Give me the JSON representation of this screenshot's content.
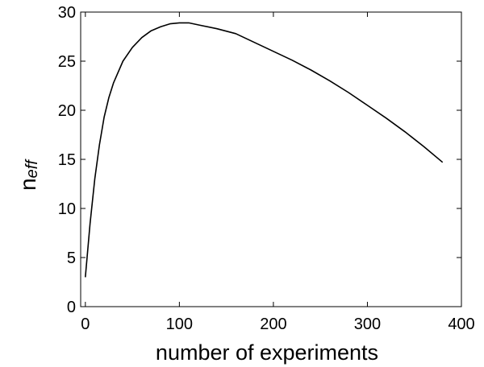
{
  "chart_data": {
    "type": "line",
    "title": "",
    "xlabel": "number of experiments",
    "ylabel": {
      "main": "n",
      "subscript": "eff"
    },
    "xlim": [
      -5,
      400
    ],
    "ylim": [
      0,
      30
    ],
    "xticks": [
      0,
      100,
      200,
      300,
      400
    ],
    "yticks": [
      0,
      5,
      10,
      15,
      20,
      25,
      30
    ],
    "xtick_labels": [
      "0",
      "100",
      "200",
      "300",
      "400"
    ],
    "ytick_labels": [
      "0",
      "5",
      "10",
      "15",
      "20",
      "25",
      "30"
    ],
    "grid": false,
    "legend": "none",
    "series": [
      {
        "color": "#000000",
        "x": [
          0,
          5,
          10,
          15,
          20,
          25,
          30,
          40,
          50,
          60,
          70,
          80,
          90,
          100,
          110,
          120,
          140,
          160,
          180,
          200,
          220,
          240,
          260,
          280,
          300,
          320,
          340,
          360,
          380
        ],
        "y": [
          3.0,
          8.5,
          13.0,
          16.5,
          19.3,
          21.3,
          22.8,
          25.0,
          26.4,
          27.4,
          28.1,
          28.5,
          28.8,
          28.9,
          28.9,
          28.7,
          28.3,
          27.8,
          26.9,
          26.0,
          25.1,
          24.1,
          23.0,
          21.8,
          20.5,
          19.2,
          17.8,
          16.3,
          14.7
        ]
      }
    ]
  }
}
